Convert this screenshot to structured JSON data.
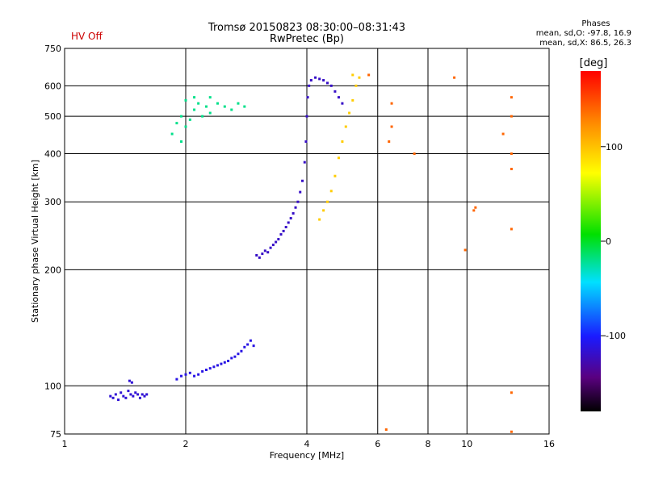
{
  "header": {
    "hv_status": "HV Off",
    "title_line1": "Tromsø 20150823 08:30:00–08:31:43",
    "title_line2": "RwPretec (Bp)",
    "stats_title": "Phases",
    "stats_line1": "mean, sd,O: -97.8, 16.9",
    "stats_line2": "mean, sd,X:  86.5, 26.3"
  },
  "chart_data": {
    "type": "scatter",
    "xlabel": "Frequency [MHz]",
    "ylabel": "Stationary phase Virtual Height [km]",
    "x_scale": "log",
    "y_scale": "log",
    "xlim": [
      1,
      16
    ],
    "ylim": [
      75,
      750
    ],
    "x_ticks": [
      1,
      2,
      4,
      6,
      8,
      10,
      16
    ],
    "y_ticks": [
      75,
      100,
      200,
      300,
      400,
      500,
      600,
      750
    ],
    "grid": true,
    "colorbar": {
      "label": "[deg]",
      "ticks": [
        -100,
        0,
        100
      ],
      "range": [
        -180,
        180
      ]
    },
    "series": [
      {
        "color_deg": -115,
        "points": [
          [
            1.3,
            94
          ],
          [
            1.32,
            93
          ],
          [
            1.34,
            95
          ],
          [
            1.36,
            92
          ],
          [
            1.38,
            96
          ],
          [
            1.4,
            94
          ],
          [
            1.42,
            93
          ],
          [
            1.44,
            97
          ],
          [
            1.46,
            95
          ],
          [
            1.48,
            94
          ],
          [
            1.5,
            96
          ],
          [
            1.52,
            95
          ],
          [
            1.54,
            93
          ],
          [
            1.56,
            95
          ],
          [
            1.58,
            94
          ],
          [
            1.6,
            95
          ],
          [
            1.45,
            103
          ],
          [
            1.47,
            102
          ]
        ]
      },
      {
        "color_deg": -110,
        "points": [
          [
            1.9,
            104
          ],
          [
            1.95,
            106
          ],
          [
            2.0,
            107
          ],
          [
            2.05,
            108
          ],
          [
            2.1,
            106
          ],
          [
            2.15,
            107
          ],
          [
            2.2,
            109
          ],
          [
            2.25,
            110
          ],
          [
            2.3,
            111
          ],
          [
            2.35,
            112
          ],
          [
            2.4,
            113
          ],
          [
            2.45,
            114
          ],
          [
            2.5,
            115
          ],
          [
            2.55,
            116
          ],
          [
            2.6,
            118
          ],
          [
            2.65,
            119
          ],
          [
            2.7,
            121
          ],
          [
            2.75,
            123
          ],
          [
            2.8,
            126
          ],
          [
            2.85,
            128
          ],
          [
            2.9,
            131
          ],
          [
            2.95,
            127
          ]
        ]
      },
      {
        "color_deg": -120,
        "points": [
          [
            3.0,
            218
          ],
          [
            3.05,
            215
          ],
          [
            3.1,
            220
          ],
          [
            3.15,
            224
          ],
          [
            3.2,
            222
          ],
          [
            3.25,
            228
          ],
          [
            3.3,
            232
          ],
          [
            3.35,
            236
          ],
          [
            3.4,
            240
          ],
          [
            3.45,
            247
          ],
          [
            3.5,
            252
          ],
          [
            3.55,
            258
          ],
          [
            3.6,
            265
          ],
          [
            3.65,
            272
          ],
          [
            3.7,
            280
          ],
          [
            3.75,
            290
          ],
          [
            3.8,
            300
          ],
          [
            3.85,
            318
          ],
          [
            3.9,
            340
          ],
          [
            3.95,
            380
          ],
          [
            3.98,
            430
          ],
          [
            4.0,
            500
          ],
          [
            4.02,
            560
          ],
          [
            4.05,
            600
          ],
          [
            4.1,
            620
          ],
          [
            4.2,
            630
          ],
          [
            4.3,
            625
          ],
          [
            4.4,
            620
          ],
          [
            4.5,
            610
          ],
          [
            4.6,
            600
          ],
          [
            4.7,
            580
          ],
          [
            4.8,
            560
          ],
          [
            4.9,
            540
          ]
        ]
      },
      {
        "color_deg": 95,
        "points": [
          [
            4.3,
            270
          ],
          [
            4.4,
            285
          ],
          [
            4.5,
            300
          ],
          [
            4.6,
            320
          ],
          [
            4.7,
            350
          ],
          [
            4.8,
            390
          ],
          [
            4.9,
            430
          ],
          [
            5.0,
            470
          ],
          [
            5.1,
            510
          ],
          [
            5.2,
            550
          ],
          [
            5.3,
            600
          ],
          [
            5.4,
            630
          ],
          [
            5.2,
            640
          ]
        ]
      },
      {
        "color_deg": -20,
        "points": [
          [
            1.85,
            450
          ],
          [
            1.9,
            480
          ],
          [
            1.95,
            500
          ],
          [
            2.0,
            470
          ],
          [
            2.05,
            490
          ],
          [
            2.1,
            520
          ],
          [
            2.15,
            540
          ],
          [
            2.2,
            500
          ],
          [
            2.25,
            530
          ],
          [
            2.3,
            510
          ],
          [
            2.4,
            540
          ],
          [
            2.5,
            530
          ],
          [
            2.6,
            520
          ],
          [
            2.7,
            540
          ],
          [
            2.8,
            530
          ],
          [
            2.0,
            550
          ],
          [
            2.1,
            560
          ],
          [
            2.3,
            560
          ],
          [
            1.95,
            430
          ]
        ]
      },
      {
        "color_deg": 140,
        "points": [
          [
            5.7,
            640
          ],
          [
            6.5,
            540
          ],
          [
            6.5,
            470
          ],
          [
            6.4,
            430
          ],
          [
            7.4,
            400
          ],
          [
            9.3,
            630
          ],
          [
            10.5,
            290
          ],
          [
            10.4,
            285
          ],
          [
            12.3,
            450
          ],
          [
            12.9,
            500
          ],
          [
            12.9,
            560
          ],
          [
            12.9,
            400
          ],
          [
            12.9,
            365
          ],
          [
            12.9,
            255
          ],
          [
            9.9,
            225
          ],
          [
            12.9,
            96
          ],
          [
            6.3,
            77
          ],
          [
            12.9,
            76
          ]
        ]
      }
    ]
  }
}
